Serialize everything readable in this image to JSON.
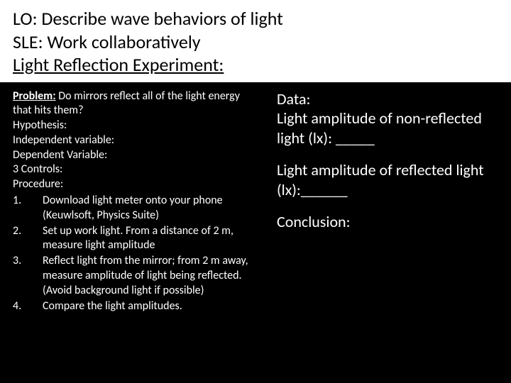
{
  "header": {
    "lo": "LO: Describe wave behaviors of light",
    "sle": "SLE: Work collaboratively",
    "title": "Light Reflection Experiment:"
  },
  "left": {
    "problem_label": "Problem:",
    "problem_text": " Do mirrors reflect all of the light energy that hits them?",
    "hypothesis": "Hypothesis:",
    "iv": "Independent variable:",
    "dv": "Dependent Variable:",
    "controls": "3 Controls:",
    "procedure": "Procedure:",
    "steps": [
      {
        "n": "1.",
        "t": "Download light meter onto your phone (Keuwlsoft, Physics Suite)"
      },
      {
        "n": "2.",
        "t": "Set up work light. From a distance of 2 m, measure light amplitude"
      },
      {
        "n": "3.",
        "t": "Reflect light from the mirror; from 2 m away, measure amplitude of light being reflected. (Avoid background light if possible)"
      },
      {
        "n": "4.",
        "t": "Compare the light amplitudes."
      }
    ]
  },
  "right": {
    "data_label": "Data:",
    "nonreflected": "Light amplitude of non-reflected light (lx): _____",
    "reflected": "Light amplitude of reflected light (lx):______",
    "conclusion": "Conclusion:"
  },
  "colors": {
    "background": "#000000",
    "header_bg": "#ffffff",
    "header_text": "#000000",
    "body_text": "#ffffff"
  }
}
